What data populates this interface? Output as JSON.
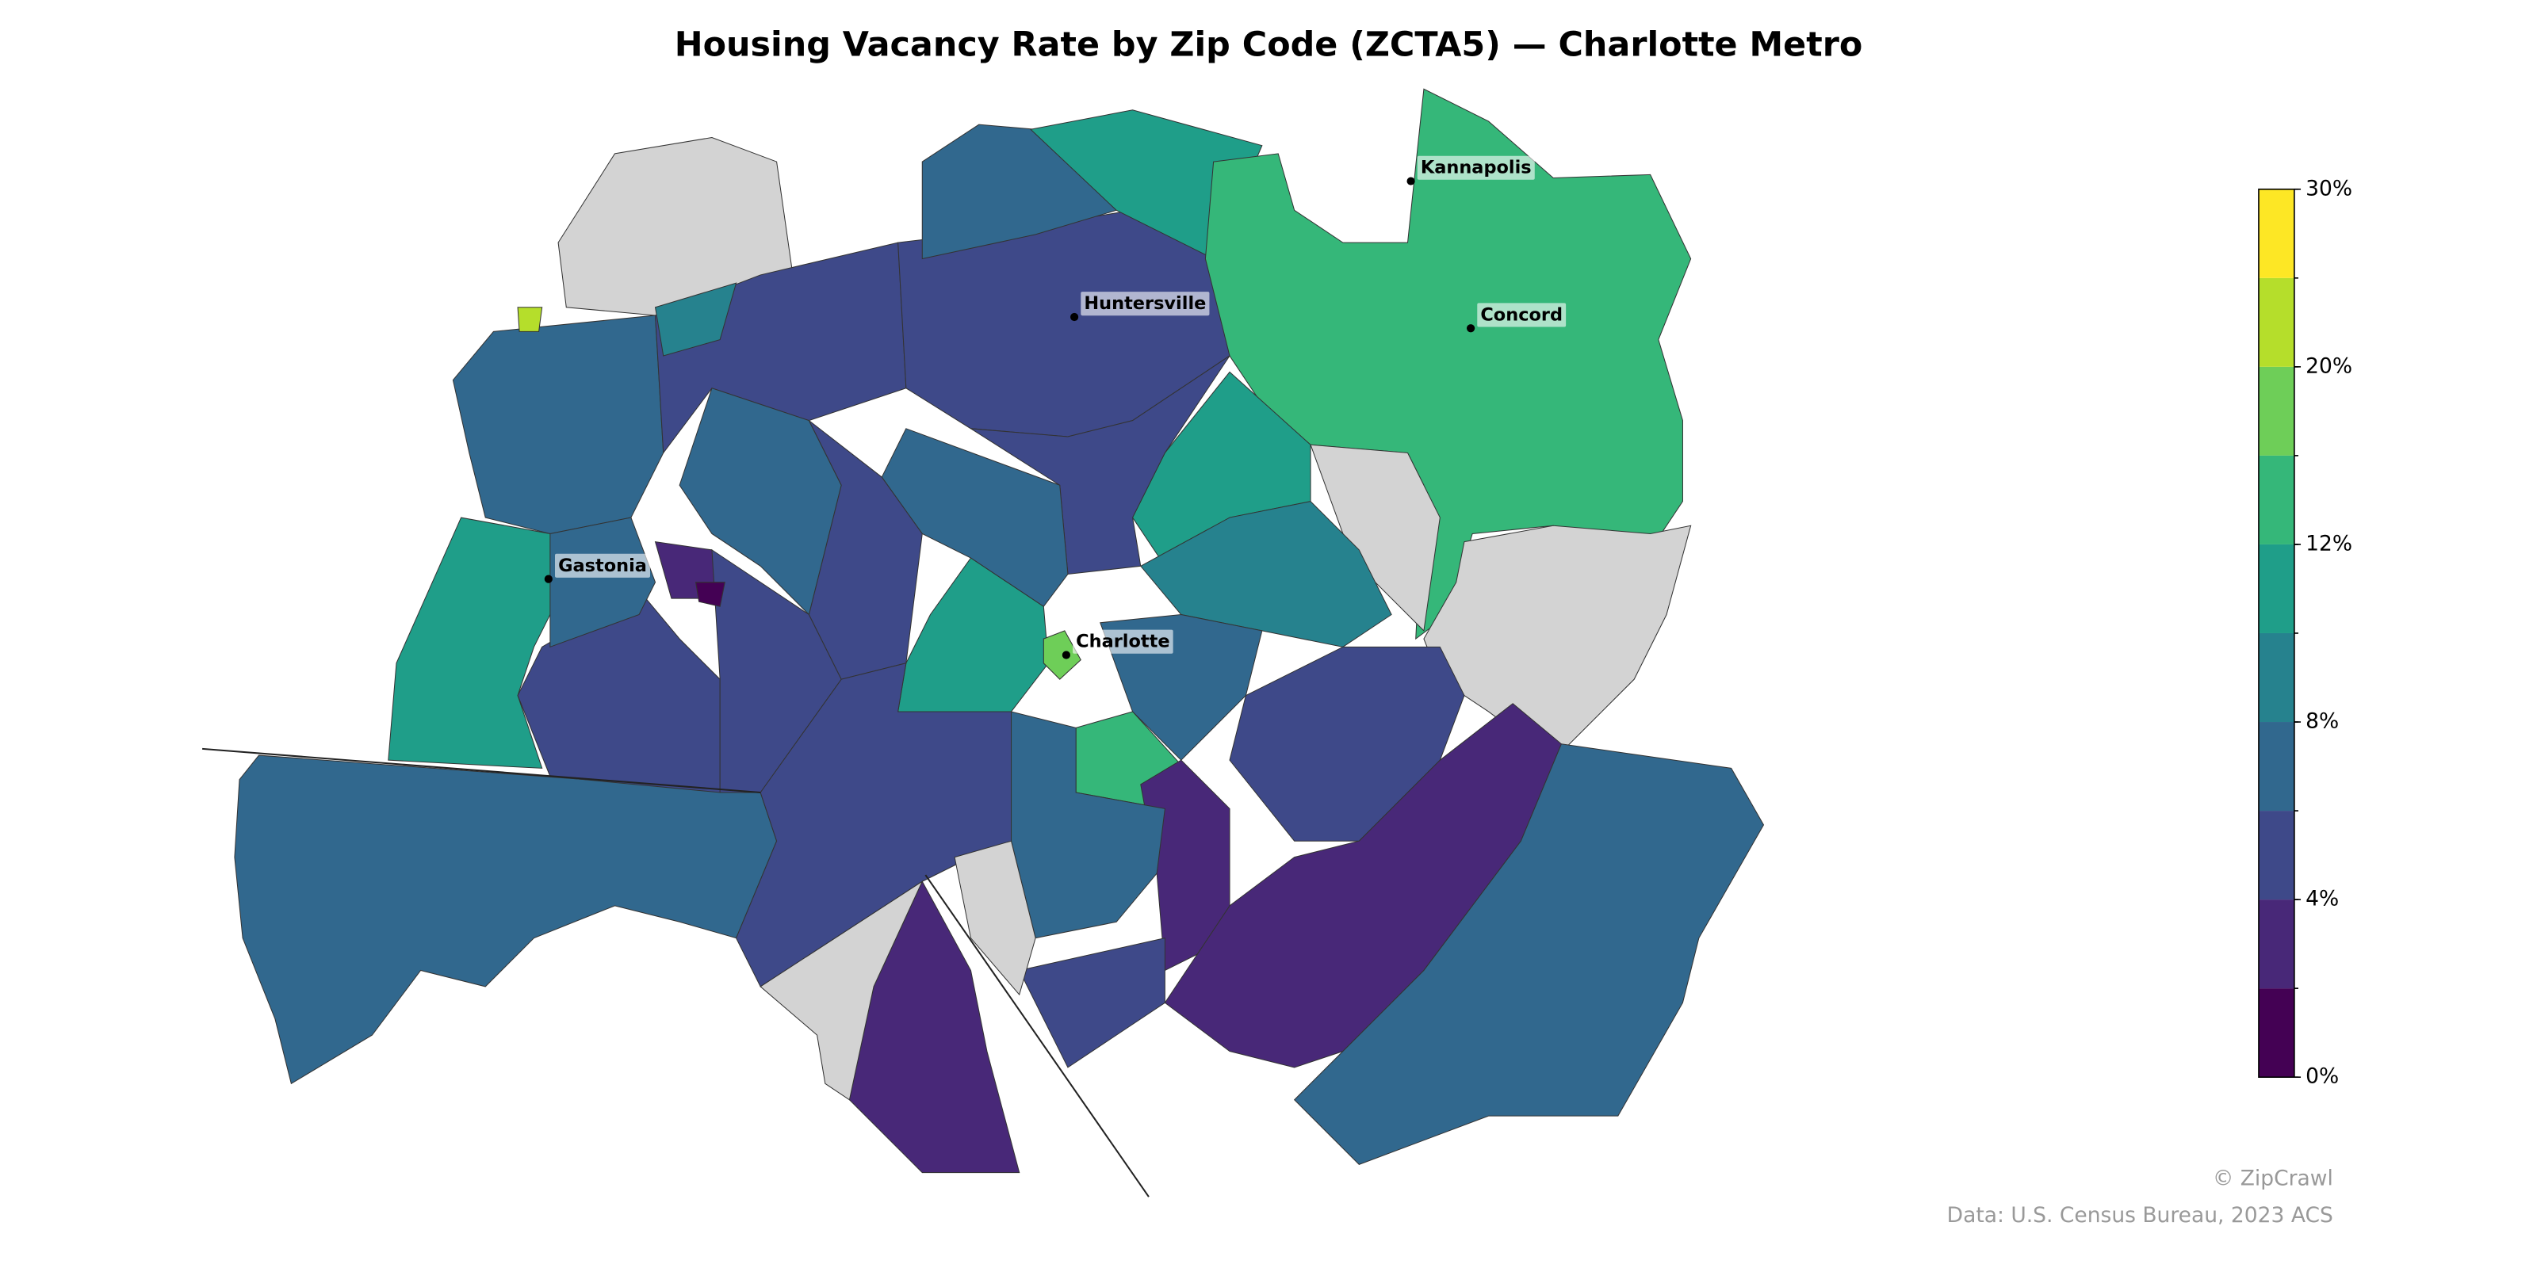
{
  "chart_data": {
    "type": "choropleth",
    "title": "Housing Vacancy Rate by Zip Code (ZCTA5) — Charlotte Metro",
    "values": [
      7,
      null,
      7,
      11,
      5,
      7,
      5,
      7,
      3,
      5,
      5,
      7,
      11,
      13,
      11,
      null,
      null,
      5,
      7,
      5,
      11,
      17,
      9,
      7,
      13,
      5,
      3,
      7,
      3,
      5,
      7,
      5,
      3,
      null,
      null,
      9,
      22,
      1
    ],
    "bounds": [
      0,
      2,
      4,
      6,
      8,
      10,
      12,
      15,
      20,
      25,
      30
    ],
    "colors": [
      "#440154",
      "#482878",
      "#3e4989",
      "#31688e",
      "#26828e",
      "#1f9e89",
      "#35b779",
      "#6ece58",
      "#b5de2b",
      "#fde725"
    ],
    "missing_color": "#d3d3d3",
    "ticks": [
      {
        "value": 0,
        "label": "0%"
      },
      {
        "value": 4,
        "label": "4%"
      },
      {
        "value": 8,
        "label": "8%"
      },
      {
        "value": 12,
        "label": "12%"
      },
      {
        "value": 20,
        "label": "20%"
      },
      {
        "value": 30,
        "label": "30%"
      }
    ],
    "places": [
      {
        "name": "Kannapolis"
      },
      {
        "name": "Huntersville"
      },
      {
        "name": "Concord"
      },
      {
        "name": "Gastonia"
      },
      {
        "name": "Charlotte"
      }
    ],
    "credit": "© ZipCrawl",
    "source": "Data: U.S. Census Bureau, 2023 ACS"
  }
}
